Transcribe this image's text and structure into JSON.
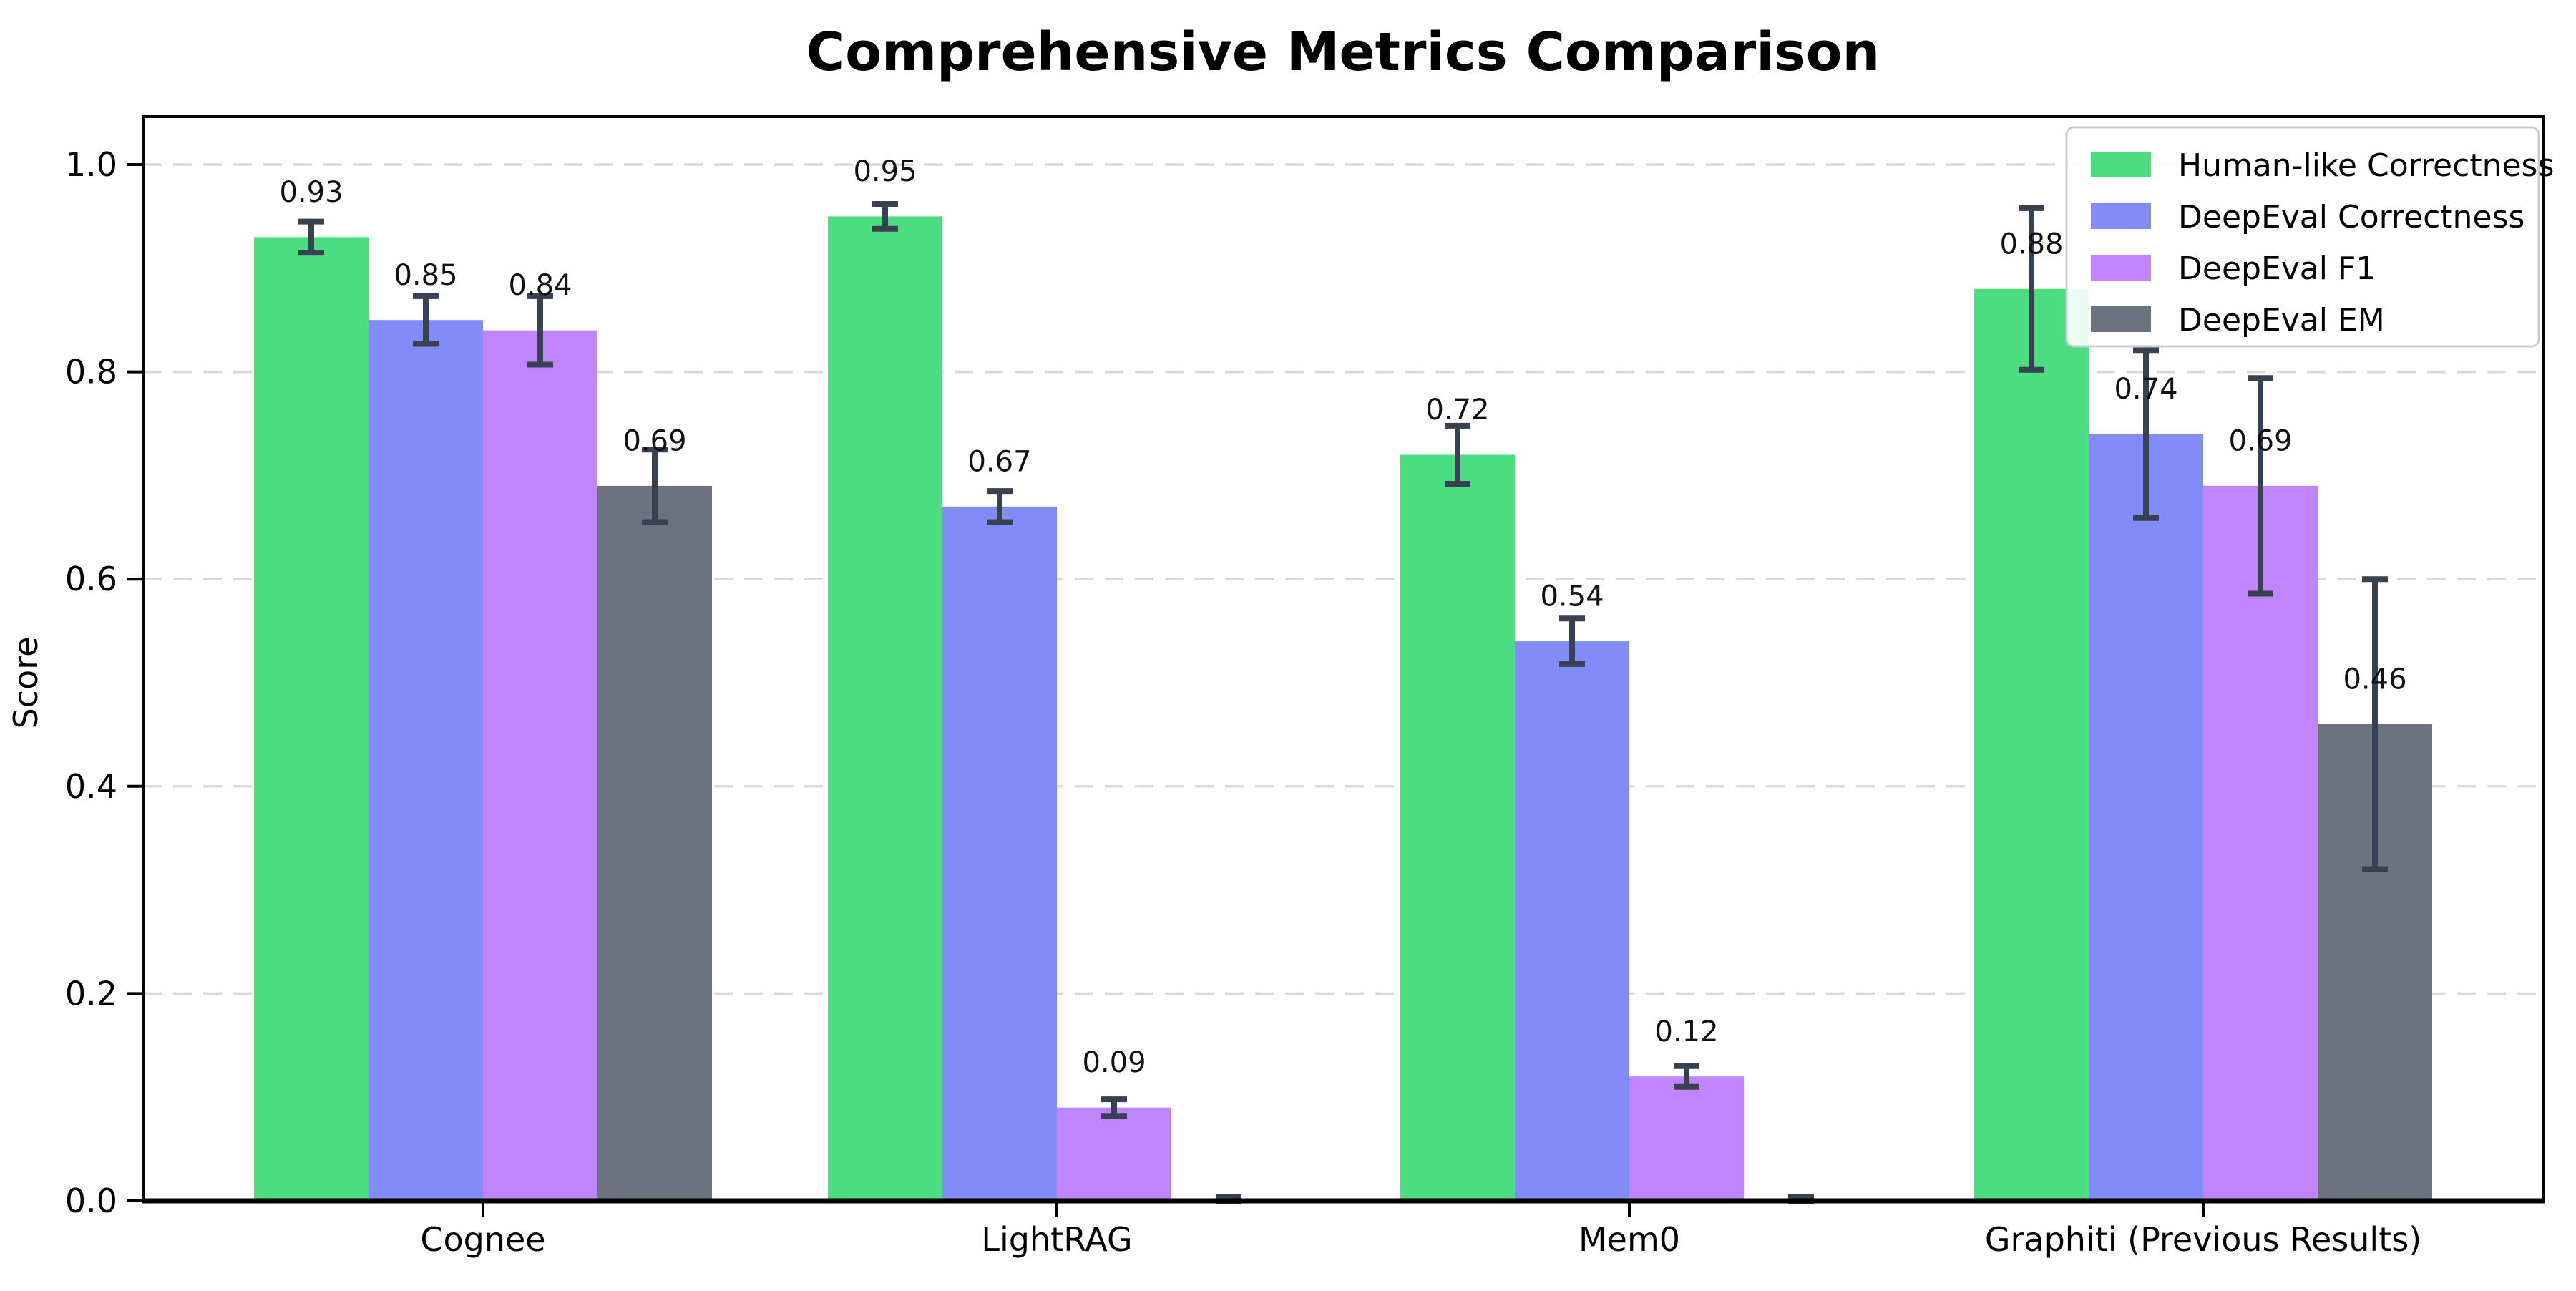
{
  "chart_data": {
    "type": "bar",
    "title": "Comprehensive Metrics Comparison",
    "xlabel": "",
    "ylabel": "Score",
    "ylim": [
      0.0,
      1.05
    ],
    "grid": "horizontal dashed",
    "legend_position": "upper right",
    "categories": [
      "Cognee",
      "LightRAG",
      "Mem0",
      "Graphiti (Previous Results)"
    ],
    "y_ticks": [
      {
        "value": 0.0,
        "label": "0.0"
      },
      {
        "value": 0.2,
        "label": "0.2"
      },
      {
        "value": 0.4,
        "label": "0.4"
      },
      {
        "value": 0.6,
        "label": "0.6"
      },
      {
        "value": 0.8,
        "label": "0.8"
      },
      {
        "value": 1.0,
        "label": "1.0"
      }
    ],
    "series": [
      {
        "name": "Human-like Correctness",
        "color": "#4ade80",
        "values": [
          0.93,
          0.95,
          0.72,
          0.88
        ],
        "errors": [
          0.015,
          0.012,
          0.028,
          0.078
        ],
        "labels": [
          "0.93",
          "0.95",
          "0.72",
          "0.88"
        ]
      },
      {
        "name": "DeepEval Correctness",
        "color": "#818cf8",
        "values": [
          0.85,
          0.67,
          0.54,
          0.74
        ],
        "errors": [
          0.023,
          0.015,
          0.022,
          0.081
        ],
        "labels": [
          "0.85",
          "0.67",
          "0.54",
          "0.74"
        ]
      },
      {
        "name": "DeepEval F1",
        "color": "#c084fc",
        "values": [
          0.84,
          0.09,
          0.12,
          0.69
        ],
        "errors": [
          0.033,
          0.008,
          0.01,
          0.104
        ],
        "labels": [
          "0.84",
          "0.09",
          "0.12",
          "0.69"
        ]
      },
      {
        "name": "DeepEval EM",
        "color": "#6b7280",
        "values": [
          0.69,
          0.0,
          0.0,
          0.46
        ],
        "errors": [
          0.035,
          0.004,
          0.004,
          0.14
        ],
        "labels": [
          "0.69",
          null,
          null,
          "0.46"
        ]
      }
    ],
    "error_bar_color": "#374151",
    "grid_color": "#d9d9d9",
    "axis_color": "#000000",
    "label_color": "#111111",
    "background": "#ffffff"
  }
}
